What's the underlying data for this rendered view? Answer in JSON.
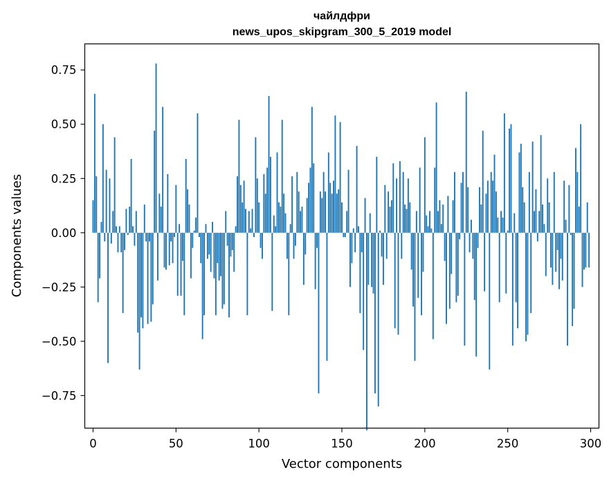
{
  "chart_data": {
    "type": "bar",
    "title_lines": [
      "чайлдфри",
      "news_upos_skipgram_300_5_2019 model"
    ],
    "xlabel": "Vector components",
    "ylabel": "Components values",
    "xlim": [
      -5,
      305
    ],
    "ylim": [
      -0.9,
      0.87
    ],
    "xticks": [
      0,
      50,
      100,
      150,
      200,
      250,
      300
    ],
    "xtick_labels": [
      "0",
      "50",
      "100",
      "150",
      "200",
      "250",
      "300"
    ],
    "yticks": [
      -0.75,
      -0.5,
      -0.25,
      0.0,
      0.25,
      0.5,
      0.75
    ],
    "ytick_labels": [
      "−0.75",
      "−0.50",
      "−0.25",
      "0.00",
      "0.25",
      "0.50",
      "0.75"
    ],
    "grid": false,
    "color": "#1f77b4",
    "x": "indices 0..299",
    "values": [
      0.15,
      0.64,
      0.26,
      -0.32,
      -0.21,
      0.05,
      0.5,
      -0.04,
      0.29,
      -0.6,
      0.25,
      -0.05,
      0.1,
      0.44,
      0.03,
      -0.09,
      0.03,
      -0.09,
      -0.37,
      -0.08,
      0.11,
      -0.01,
      0.12,
      0.34,
      0.03,
      -0.06,
      0.1,
      -0.46,
      -0.63,
      -0.39,
      -0.44,
      0.13,
      -0.04,
      -0.42,
      -0.04,
      -0.41,
      -0.33,
      0.47,
      0.78,
      -0.22,
      0.18,
      0.12,
      0.58,
      -0.16,
      -0.17,
      0.27,
      -0.15,
      -0.04,
      -0.14,
      -0.02,
      0.22,
      -0.29,
      0.04,
      -0.29,
      -0.13,
      -0.38,
      0.34,
      0.2,
      0.13,
      -0.21,
      -0.07,
      0.01,
      0.07,
      0.55,
      -0.02,
      -0.14,
      -0.49,
      -0.38,
      0.04,
      -0.12,
      -0.1,
      -0.18,
      0.05,
      -0.21,
      -0.38,
      -0.14,
      -0.22,
      -0.2,
      -0.35,
      -0.33,
      0.1,
      -0.06,
      -0.39,
      -0.11,
      -0.08,
      -0.18,
      0.03,
      0.26,
      0.52,
      0.22,
      0.14,
      0.24,
      0.11,
      -0.38,
      0.1,
      0.02,
      0.11,
      -0.02,
      0.44,
      0.25,
      0.14,
      -0.07,
      -0.12,
      0.27,
      0.18,
      0.3,
      0.63,
      0.35,
      -0.36,
      0.08,
      0.03,
      0.37,
      0.14,
      0.12,
      0.52,
      0.18,
      0.09,
      -0.12,
      -0.38,
      0.04,
      0.26,
      -0.12,
      -0.06,
      0.28,
      0.19,
      0.1,
      0.12,
      -0.24,
      -0.1,
      0.16,
      0.23,
      0.3,
      0.58,
      0.32,
      -0.26,
      -0.07,
      -0.74,
      0.19,
      0.16,
      0.28,
      0.19,
      -0.59,
      0.37,
      0.23,
      0.18,
      0.24,
      0.54,
      0.18,
      0.2,
      0.51,
      0.14,
      -0.02,
      -0.02,
      0.1,
      0.29,
      -0.25,
      -0.14,
      0.02,
      -0.09,
      0.4,
      0.03,
      -0.37,
      -0.09,
      -0.54,
      0.16,
      -0.91,
      -0.24,
      0.09,
      -0.25,
      -0.28,
      -0.74,
      0.35,
      -0.8,
      0.01,
      -0.11,
      -0.24,
      0.22,
      -0.12,
      0.19,
      0.12,
      0.15,
      0.32,
      -0.44,
      0.25,
      -0.47,
      0.33,
      -0.12,
      0.28,
      0.13,
      0.11,
      0.25,
      0.14,
      -0.17,
      -0.34,
      -0.59,
      0.1,
      -0.3,
      0.3,
      -0.38,
      -0.18,
      0.44,
      0.08,
      0.03,
      0.1,
      0.02,
      -0.49,
      0.3,
      0.6,
      0.1,
      0.15,
      0.04,
      0.13,
      -0.13,
      -0.42,
      0.17,
      -0.35,
      -0.19,
      0.15,
      0.28,
      -0.32,
      -0.29,
      -0.03,
      0.23,
      0.28,
      -0.52,
      0.65,
      0.21,
      -0.09,
      0.06,
      -0.12,
      -0.31,
      -0.57,
      -0.07,
      0.21,
      0.13,
      0.47,
      -0.27,
      0.18,
      0.24,
      -0.63,
      0.28,
      0.24,
      0.36,
      0.19,
      0.07,
      -0.32,
      0.1,
      0.07,
      0.55,
      -0.28,
      0.01,
      0.48,
      0.5,
      -0.52,
      0.09,
      -0.32,
      -0.44,
      0.37,
      0.41,
      0.21,
      0.14,
      -0.5,
      -0.47,
      0.28,
      -0.37,
      0.42,
      0.1,
      0.2,
      -0.04,
      0.1,
      0.45,
      0.13,
      0.04,
      -0.2,
      0.25,
      0.14,
      -0.16,
      -0.24,
      0.28,
      -0.18,
      -0.08,
      -0.26,
      -0.12,
      -0.22,
      0.24,
      0.06,
      -0.52,
      0.22,
      -0.01,
      -0.43,
      -0.35,
      0.39,
      0.28,
      0.12,
      0.5,
      -0.25,
      -0.17,
      -0.16,
      0.14,
      -0.16
    ]
  }
}
